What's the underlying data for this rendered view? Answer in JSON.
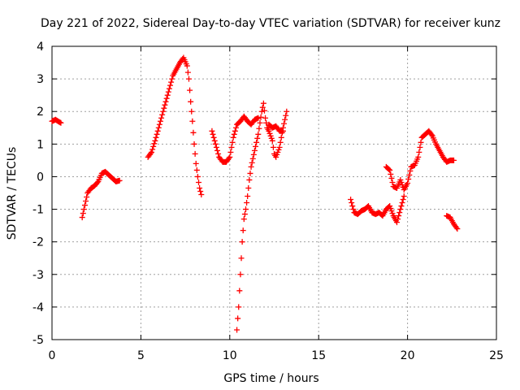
{
  "chart_data": {
    "type": "scatter",
    "title": "Day 221 of 2022, Sidereal Day-to-day VTEC variation (SDTVAR) for receiver kunz",
    "xlabel": "GPS time / hours",
    "ylabel": "SDTVAR / TECUs",
    "xlim": [
      0,
      25
    ],
    "ylim": [
      -5,
      4
    ],
    "xticks": [
      "0",
      "5",
      "10",
      "15",
      "20",
      "25"
    ],
    "yticks": [
      "-5",
      "-4",
      "-3",
      "-2",
      "-1",
      "0",
      "1",
      "2",
      "3",
      "4"
    ],
    "grid": true,
    "marker": "+",
    "color": "#ff0000",
    "segments": [
      [
        [
          0.0,
          1.7
        ],
        [
          0.2,
          1.75
        ],
        [
          0.4,
          1.68
        ],
        [
          0.5,
          1.65
        ]
      ],
      [
        [
          1.7,
          -1.25
        ],
        [
          1.8,
          -1.0
        ],
        [
          1.9,
          -0.75
        ],
        [
          2.0,
          -0.5
        ],
        [
          2.2,
          -0.35
        ],
        [
          2.4,
          -0.28
        ],
        [
          2.6,
          -0.15
        ],
        [
          2.8,
          0.1
        ],
        [
          3.0,
          0.15
        ],
        [
          3.2,
          0.05
        ],
        [
          3.4,
          -0.05
        ],
        [
          3.6,
          -0.15
        ],
        [
          3.8,
          -0.12
        ]
      ],
      [
        [
          5.4,
          0.6
        ],
        [
          5.6,
          0.75
        ],
        [
          5.8,
          1.1
        ],
        [
          6.0,
          1.5
        ],
        [
          6.2,
          1.9
        ],
        [
          6.4,
          2.3
        ],
        [
          6.6,
          2.7
        ],
        [
          6.8,
          3.1
        ],
        [
          7.0,
          3.3
        ],
        [
          7.2,
          3.5
        ],
        [
          7.4,
          3.65
        ],
        [
          7.6,
          3.4
        ],
        [
          7.7,
          3.0
        ],
        [
          7.8,
          2.3
        ],
        [
          7.9,
          1.7
        ],
        [
          8.0,
          1.0
        ],
        [
          8.1,
          0.4
        ],
        [
          8.2,
          0.0
        ],
        [
          8.3,
          -0.35
        ],
        [
          8.4,
          -0.55
        ]
      ],
      [
        [
          9.0,
          1.4
        ],
        [
          9.2,
          1.0
        ],
        [
          9.4,
          0.6
        ],
        [
          9.6,
          0.45
        ],
        [
          9.8,
          0.45
        ],
        [
          10.0,
          0.6
        ],
        [
          10.2,
          1.2
        ],
        [
          10.4,
          1.6
        ],
        [
          10.6,
          1.7
        ],
        [
          10.8,
          1.85
        ],
        [
          11.0,
          1.7
        ],
        [
          11.2,
          1.6
        ],
        [
          11.4,
          1.75
        ],
        [
          11.6,
          1.8
        ]
      ],
      [
        [
          10.4,
          -4.7
        ],
        [
          10.5,
          -4.0
        ],
        [
          10.6,
          -3.0
        ],
        [
          10.7,
          -2.0
        ],
        [
          10.8,
          -1.3
        ],
        [
          10.9,
          -1.0
        ],
        [
          11.0,
          -0.6
        ],
        [
          11.1,
          -0.1
        ],
        [
          11.2,
          0.3
        ],
        [
          11.4,
          0.8
        ],
        [
          11.6,
          1.3
        ],
        [
          11.8,
          2.0
        ],
        [
          11.9,
          2.25
        ],
        [
          12.0,
          1.8
        ],
        [
          12.1,
          1.5
        ],
        [
          12.2,
          1.4
        ],
        [
          12.4,
          1.1
        ],
        [
          12.5,
          0.7
        ],
        [
          12.6,
          0.6
        ],
        [
          12.8,
          0.9
        ],
        [
          13.0,
          1.5
        ],
        [
          13.2,
          2.0
        ]
      ],
      [
        [
          12.2,
          1.6
        ],
        [
          12.4,
          1.5
        ],
        [
          12.6,
          1.55
        ],
        [
          12.8,
          1.4
        ],
        [
          13.0,
          1.4
        ]
      ],
      [
        [
          16.8,
          -0.7
        ],
        [
          17.0,
          -1.1
        ],
        [
          17.2,
          -1.15
        ],
        [
          17.4,
          -1.05
        ],
        [
          17.6,
          -1.0
        ],
        [
          17.8,
          -0.9
        ],
        [
          18.0,
          -1.1
        ],
        [
          18.2,
          -1.15
        ],
        [
          18.4,
          -1.1
        ],
        [
          18.6,
          -1.2
        ],
        [
          18.8,
          -1.0
        ],
        [
          19.0,
          -0.9
        ],
        [
          19.2,
          -1.2
        ],
        [
          19.4,
          -1.4
        ],
        [
          19.6,
          -1.0
        ],
        [
          19.8,
          -0.6
        ]
      ],
      [
        [
          18.8,
          0.3
        ],
        [
          19.0,
          0.2
        ],
        [
          19.2,
          -0.3
        ],
        [
          19.4,
          -0.35
        ],
        [
          19.6,
          -0.1
        ],
        [
          19.8,
          -0.4
        ],
        [
          20.0,
          -0.2
        ],
        [
          20.2,
          0.3
        ],
        [
          20.4,
          0.35
        ],
        [
          20.6,
          0.6
        ],
        [
          20.8,
          1.2
        ],
        [
          21.0,
          1.3
        ],
        [
          21.2,
          1.4
        ],
        [
          21.4,
          1.25
        ],
        [
          21.6,
          1.0
        ],
        [
          21.8,
          0.8
        ],
        [
          22.0,
          0.6
        ],
        [
          22.2,
          0.45
        ],
        [
          22.4,
          0.5
        ],
        [
          22.6,
          0.5
        ]
      ],
      [
        [
          22.2,
          -1.2
        ],
        [
          22.4,
          -1.25
        ],
        [
          22.6,
          -1.45
        ],
        [
          22.8,
          -1.6
        ]
      ]
    ]
  }
}
